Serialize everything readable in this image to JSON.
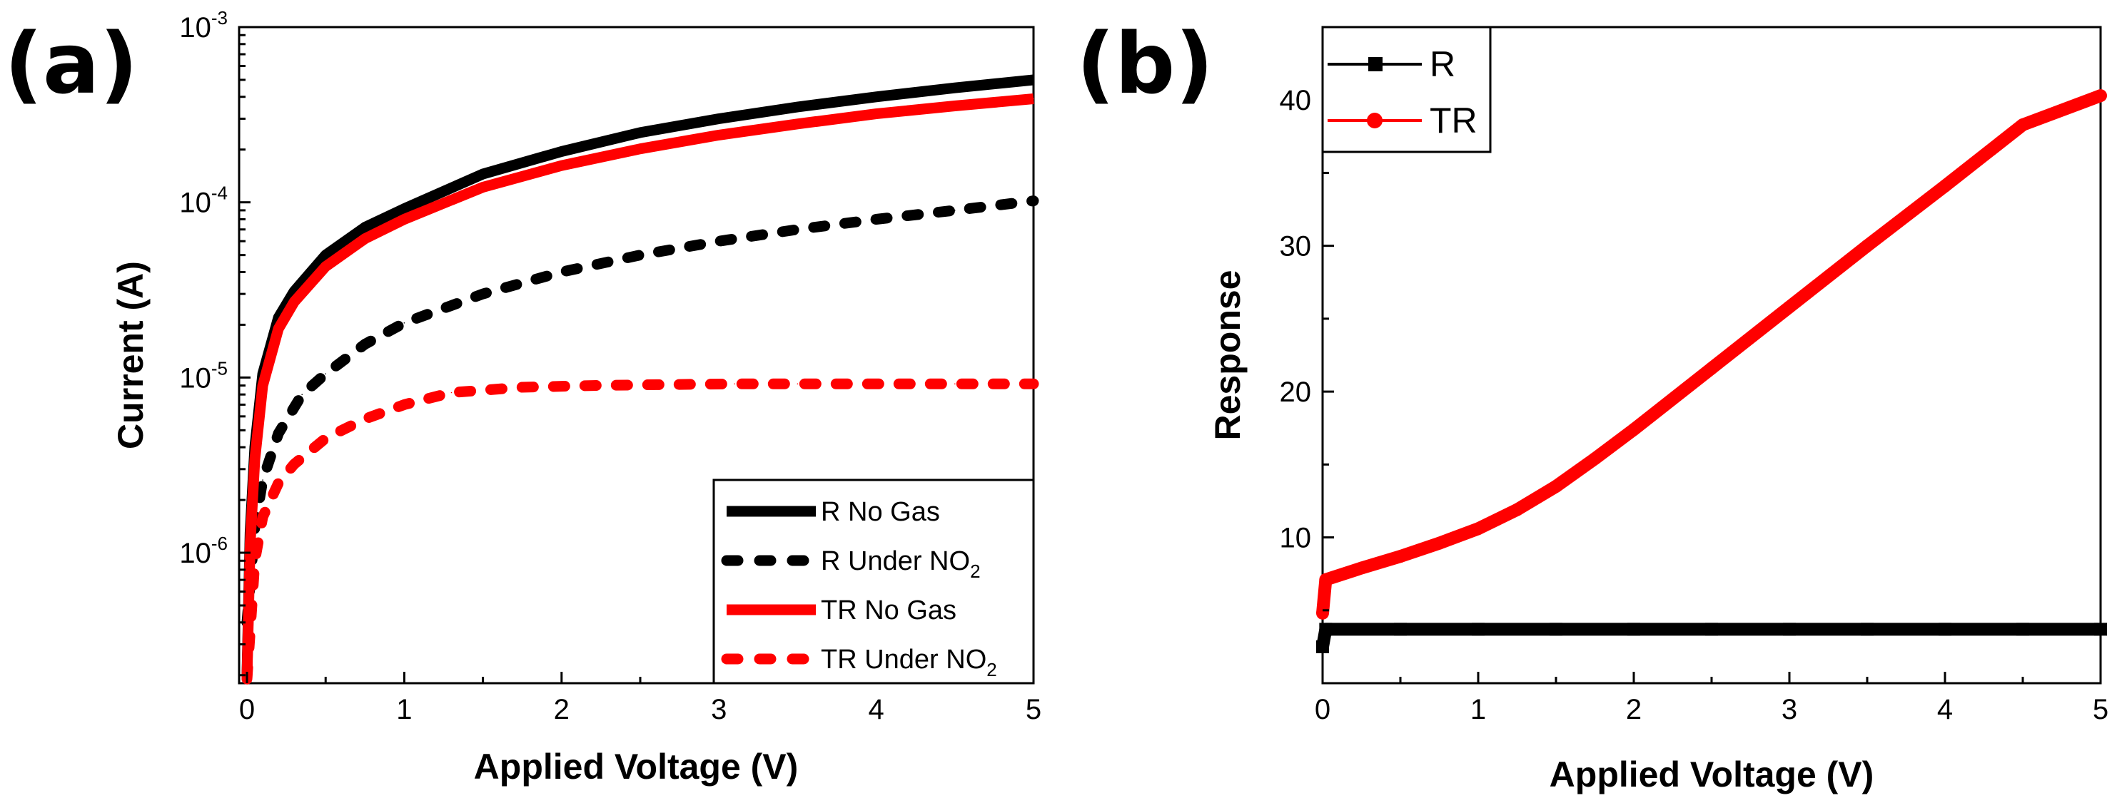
{
  "figure": {
    "panel_a_label": "(a)",
    "panel_b_label": "(b)"
  },
  "chart_data": [
    {
      "type": "line",
      "panel": "(a)",
      "xlabel": "Applied Voltage (V)",
      "ylabel": "Current (A)",
      "yscale": "log",
      "xlim": [
        -0.05,
        5
      ],
      "ylim": [
        1.8e-07,
        0.001
      ],
      "x_ticks": [
        0,
        1,
        2,
        3,
        4,
        5
      ],
      "x_tick_labels": [
        "0",
        "1",
        "2",
        "3",
        "4",
        "5"
      ],
      "y_ticks": [
        1e-06,
        1e-05,
        0.0001,
        0.001
      ],
      "y_tick_labels": [
        {
          "base": "10",
          "exp": "-6"
        },
        {
          "base": "10",
          "exp": "-5"
        },
        {
          "base": "10",
          "exp": "-4"
        },
        {
          "base": "10",
          "exp": "-3"
        }
      ],
      "legend_position": "bottom-right",
      "series": [
        {
          "name": "R No Gas",
          "legend_parts": [
            "R No Gas",
            ""
          ],
          "color": "#000000",
          "style": "solid",
          "x": [
            0,
            0.02,
            0.05,
            0.1,
            0.2,
            0.3,
            0.5,
            0.75,
            1,
            1.5,
            2,
            2.5,
            3,
            3.5,
            4,
            4.5,
            5
          ],
          "y": [
            2e-07,
            1.3e-06,
            4e-06,
            1.05e-05,
            2.2e-05,
            3.1e-05,
            5e-05,
            7.2e-05,
            9.2e-05,
            0.000145,
            0.000195,
            0.00025,
            0.0003,
            0.00035,
            0.0004,
            0.00045,
            0.0005
          ]
        },
        {
          "name": "R Under NO2",
          "legend_parts": [
            "R Under NO",
            "2"
          ],
          "color": "#000000",
          "style": "dashed",
          "x": [
            0,
            0.05,
            0.1,
            0.2,
            0.35,
            0.5,
            0.75,
            1,
            1.5,
            2,
            2.5,
            3,
            3.5,
            4,
            4.5,
            5
          ],
          "y": [
            4e-07,
            1.4e-06,
            2.6e-06,
            4.8e-06,
            8e-06,
            1.05e-05,
            1.55e-05,
            2.05e-05,
            3e-05,
            4e-05,
            5e-05,
            6e-05,
            7e-05,
            8e-05,
            9e-05,
            0.000102
          ]
        },
        {
          "name": "TR No Gas",
          "legend_parts": [
            "TR No Gas",
            ""
          ],
          "color": "#ff0000",
          "style": "solid",
          "x": [
            0,
            0.02,
            0.05,
            0.1,
            0.2,
            0.3,
            0.5,
            0.75,
            1,
            1.5,
            2,
            2.5,
            3,
            3.5,
            4,
            4.5,
            5
          ],
          "y": [
            1.9e-07,
            1.1e-06,
            3.4e-06,
            9e-06,
            1.9e-05,
            2.7e-05,
            4.3e-05,
            6.2e-05,
            8e-05,
            0.000122,
            0.000162,
            0.000202,
            0.000242,
            0.00028,
            0.00032,
            0.000355,
            0.00039
          ]
        },
        {
          "name": "TR Under NO2",
          "legend_parts": [
            "TR Under NO",
            "2"
          ],
          "color": "#ff0000",
          "style": "dashed",
          "x": [
            0,
            0.02,
            0.05,
            0.1,
            0.2,
            0.3,
            0.5,
            0.75,
            1,
            1.3,
            1.75,
            2.2,
            2.6,
            3.1,
            3.5,
            4,
            4.5,
            5
          ],
          "y": [
            1.9e-07,
            3.5e-07,
            9e-07,
            1.6e-06,
            2.5e-06,
            3.2e-06,
            4.5e-06,
            5.8e-06,
            7e-06,
            8.2e-06,
            8.8e-06,
            9e-06,
            9.1e-06,
            9.2e-06,
            9.2e-06,
            9.2e-06,
            9.2e-06,
            9.2e-06
          ]
        }
      ]
    },
    {
      "type": "line",
      "panel": "(b)",
      "xlabel": "Applied Voltage (V)",
      "ylabel": "Response",
      "xlim": [
        0,
        5
      ],
      "ylim": [
        0,
        45
      ],
      "x_ticks": [
        0,
        1,
        2,
        3,
        4,
        5
      ],
      "x_tick_labels": [
        "0",
        "1",
        "2",
        "3",
        "4",
        "5"
      ],
      "y_ticks": [
        10,
        20,
        30,
        40
      ],
      "y_tick_labels": [
        "10",
        "20",
        "30",
        "40"
      ],
      "legend_position": "top-left",
      "series": [
        {
          "name": "R",
          "color": "#000000",
          "marker": "square",
          "x": [
            0,
            0.02,
            0.5,
            1,
            1.5,
            2,
            2.5,
            3,
            3.5,
            4,
            4.5,
            5
          ],
          "y": [
            2.5,
            3.7,
            3.7,
            3.7,
            3.7,
            3.7,
            3.7,
            3.7,
            3.7,
            3.7,
            3.7,
            3.7
          ]
        },
        {
          "name": "TR",
          "color": "#ff0000",
          "marker": "circle",
          "x": [
            0,
            0.02,
            0.25,
            0.5,
            0.75,
            1,
            1.25,
            1.5,
            1.75,
            2,
            2.5,
            3,
            3.5,
            4,
            4.5,
            5
          ],
          "y": [
            4.8,
            7.1,
            7.9,
            8.7,
            9.6,
            10.6,
            11.9,
            13.5,
            15.4,
            17.4,
            21.6,
            25.8,
            30,
            34.1,
            38.3,
            40.3
          ]
        }
      ]
    }
  ]
}
